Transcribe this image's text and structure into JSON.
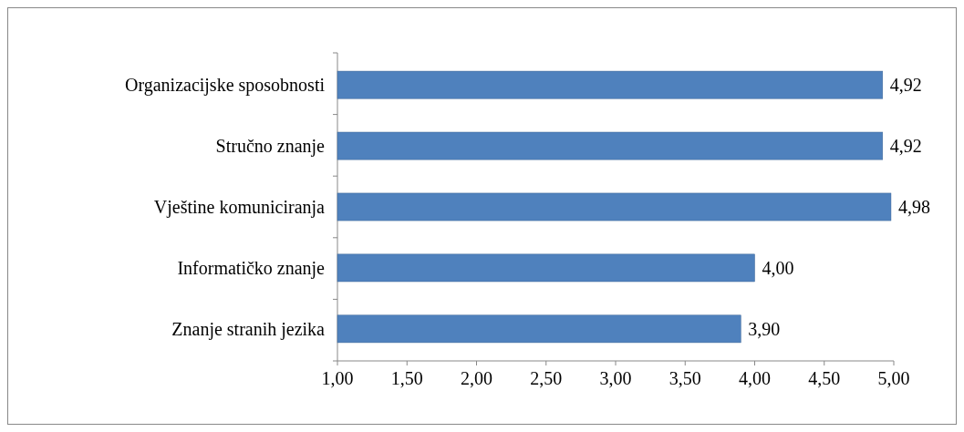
{
  "chart_data": {
    "type": "bar",
    "orientation": "horizontal",
    "categories": [
      "Organizacijske sposobnosti",
      "Stručno znanje",
      "Vještine komuniciranja",
      "Informatičko znanje",
      "Znanje stranih jezika"
    ],
    "values": [
      4.92,
      4.92,
      4.98,
      4.0,
      3.9
    ],
    "value_labels": [
      "4,92",
      "4,92",
      "4,98",
      "4,00",
      "3,90"
    ],
    "color": "#4f81bd",
    "xlim": [
      1,
      5
    ],
    "xticks": [
      {
        "value": 1,
        "label": "1,00"
      },
      {
        "value": 1.5,
        "label": "1,50"
      },
      {
        "value": 2,
        "label": "2,00"
      },
      {
        "value": 2.5,
        "label": "2,50"
      },
      {
        "value": 3,
        "label": "3,00"
      },
      {
        "value": 3.5,
        "label": "3,50"
      },
      {
        "value": 4,
        "label": "4,00"
      },
      {
        "value": 4.5,
        "label": "4,50"
      },
      {
        "value": 5,
        "label": "5,00"
      }
    ],
    "grid": false
  }
}
